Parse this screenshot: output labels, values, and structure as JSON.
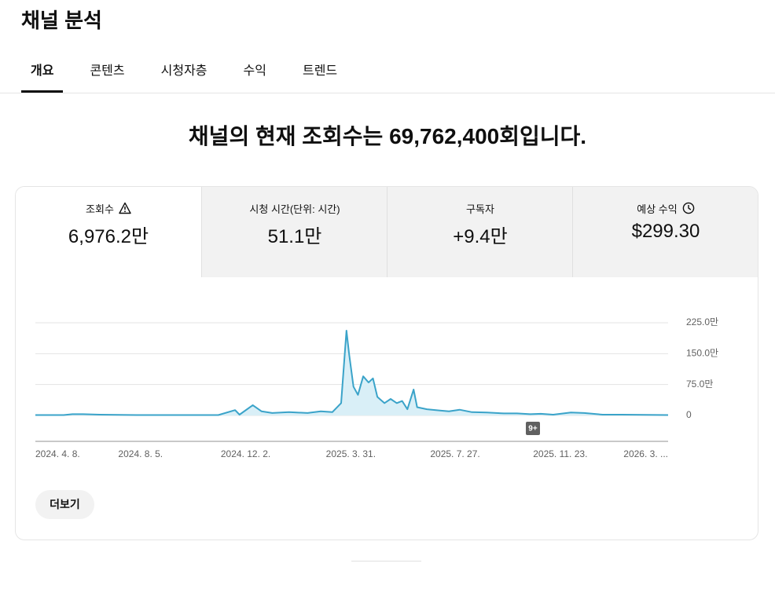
{
  "header": {
    "title": "채널 분석"
  },
  "tabs": [
    "개요",
    "콘텐츠",
    "시청자층",
    "수익",
    "트렌드"
  ],
  "headline": "채널의 현재 조회수는 69,762,400회입니다.",
  "metrics": [
    {
      "label": "조회수",
      "value": "6,976.2만"
    },
    {
      "label": "시청 시간(단위: 시간)",
      "value": "51.1만"
    },
    {
      "label": "구독자",
      "value": "+9.4만"
    },
    {
      "label": "예상 수익",
      "value": "$299.30"
    }
  ],
  "chart_data": {
    "type": "line",
    "color": "#3aa3c9",
    "fill": "#d9eff7",
    "x": [
      "2024-04-08",
      "2024-05-10",
      "2024-05-20",
      "2024-06-01",
      "2024-06-20",
      "2024-08-01",
      "2024-11-01",
      "2024-11-20",
      "2024-11-25",
      "2024-12-10",
      "2024-12-20",
      "2025-01-01",
      "2025-01-20",
      "2025-02-10",
      "2025-02-25",
      "2025-03-10",
      "2025-03-20",
      "2025-03-26",
      "2025-03-29",
      "2025-04-03",
      "2025-04-08",
      "2025-04-14",
      "2025-04-20",
      "2025-04-25",
      "2025-04-30",
      "2025-05-08",
      "2025-05-15",
      "2025-05-22",
      "2025-05-28",
      "2025-06-03",
      "2025-06-10",
      "2025-06-14",
      "2025-06-25",
      "2025-07-10",
      "2025-07-20",
      "2025-08-01",
      "2025-08-15",
      "2025-09-01",
      "2025-09-20",
      "2025-10-05",
      "2025-10-20",
      "2025-11-01",
      "2025-11-15",
      "2025-12-05",
      "2025-12-20",
      "2026-01-10",
      "2026-02-01",
      "2026-03-25"
    ],
    "values": [
      1,
      1,
      3,
      3,
      2,
      1,
      1,
      13,
      2,
      25,
      10,
      6,
      8,
      6,
      10,
      8,
      30,
      206,
      150,
      70,
      50,
      95,
      80,
      90,
      45,
      30,
      40,
      30,
      35,
      15,
      63,
      20,
      15,
      12,
      10,
      14,
      8,
      7,
      5,
      5,
      3,
      4,
      2,
      7,
      6,
      2,
      2,
      1
    ],
    "xlim": [
      "2024-04-08",
      "2026-03-25"
    ],
    "xticks": [
      {
        "value": "2024-04-08",
        "label": "2024. 4. 8."
      },
      {
        "value": "2024-08-05",
        "label": "2024. 8. 5."
      },
      {
        "value": "2024-12-02",
        "label": "2024. 12. 2."
      },
      {
        "value": "2025-03-31",
        "label": "2025. 3. 31."
      },
      {
        "value": "2025-07-27",
        "label": "2025. 7. 27."
      },
      {
        "value": "2025-11-23",
        "label": "2025. 11. 23."
      },
      {
        "value": "2026-03-21",
        "label": "2026. 3. ..."
      }
    ],
    "ylim": [
      0,
      225
    ],
    "yticks": [
      0,
      {
        "value": 75,
        "label": "75.0만"
      },
      {
        "value": 150,
        "label": "150.0만"
      },
      {
        "value": 225,
        "label": "225.0만"
      }
    ],
    "grid": true
  },
  "badge": "9+",
  "more_button": "더보기"
}
